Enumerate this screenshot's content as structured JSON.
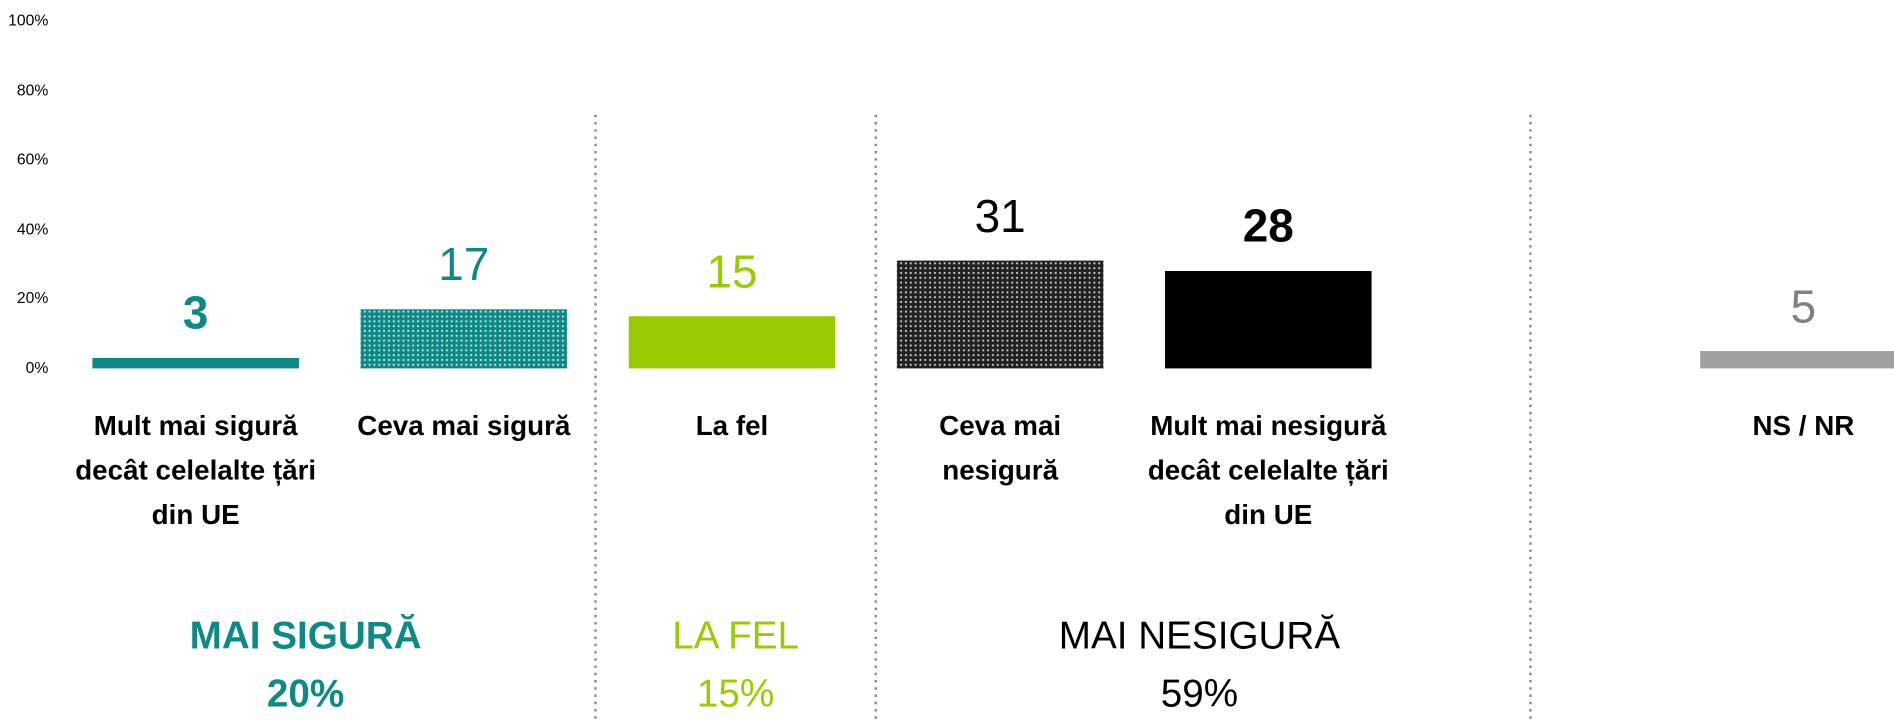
{
  "chart_data": {
    "type": "bar",
    "categories": [
      "Mult mai sigură decât celelalte țări din UE",
      "Ceva mai sigură",
      "La fel",
      "Ceva mai nesigură",
      "Mult mai nesigură decât celelalte țări din UE",
      "NS / NR"
    ],
    "values": [
      3,
      17,
      15,
      31,
      28,
      5
    ],
    "colors": [
      "#0e8a86",
      "#0e8a86",
      "#99cc00",
      "#222222",
      "#000000",
      "#a0a0a0"
    ],
    "hatched": [
      false,
      true,
      false,
      true,
      false,
      false
    ],
    "value_label_colors": [
      "#0e8a86",
      "#0e8a86",
      "#99cc00",
      "#000000",
      "#000000",
      "#808080"
    ],
    "value_label_bold": [
      true,
      false,
      false,
      false,
      true,
      false
    ],
    "ylim": [
      0,
      100
    ],
    "yticks": [
      {
        "value": 0,
        "label": "0%"
      },
      {
        "value": 20,
        "label": "20%"
      },
      {
        "value": 40,
        "label": "40%"
      },
      {
        "value": 60,
        "label": "60%"
      },
      {
        "value": 80,
        "label": "80%"
      },
      {
        "value": 100,
        "label": "100%"
      }
    ],
    "groups": [
      {
        "name": "MAI SIGURĂ",
        "total": "20%",
        "color": "#0e8a86",
        "bold": true
      },
      {
        "name": "LA FEL",
        "total": "15%",
        "color": "#99cc00",
        "bold": false
      },
      {
        "name": "MAI NESIGURĂ",
        "total": "59%",
        "color": "#000000",
        "bold": false
      }
    ]
  }
}
